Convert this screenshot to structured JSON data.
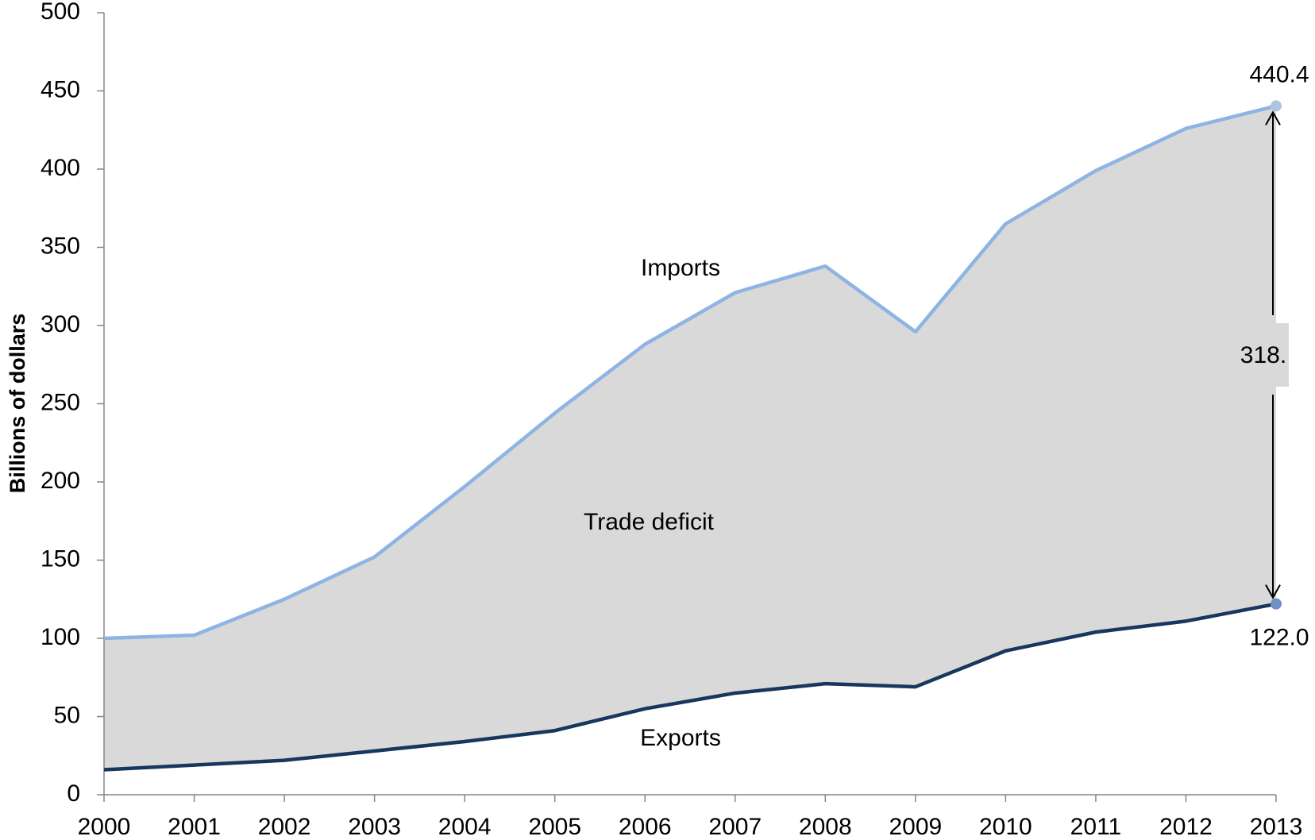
{
  "chart_data": {
    "type": "line",
    "y_label": "Billions of dollars",
    "x": [
      2000,
      2001,
      2002,
      2003,
      2004,
      2005,
      2006,
      2007,
      2008,
      2009,
      2010,
      2011,
      2012,
      2013
    ],
    "series": [
      {
        "name": "Imports",
        "color": "#8eb4e3",
        "values": [
          100,
          102,
          125,
          152,
          197,
          244,
          288,
          321,
          338,
          296,
          365,
          399,
          426,
          440.4
        ],
        "value_labels": [
          null,
          null,
          null,
          null,
          null,
          null,
          null,
          null,
          null,
          null,
          null,
          null,
          null,
          "440.4"
        ]
      },
      {
        "name": "Exports",
        "color": "#17375e",
        "values": [
          16,
          19,
          22,
          28,
          34,
          41,
          55,
          65,
          71,
          69,
          92,
          104,
          111,
          122
        ],
        "value_labels": [
          null,
          null,
          null,
          null,
          null,
          null,
          null,
          null,
          null,
          null,
          null,
          null,
          null,
          "122.0"
        ]
      }
    ],
    "annotations": [
      "Trade deficit",
      "318."
    ],
    "area_color": "#d9d9d9",
    "xlim": [
      2000,
      2013
    ],
    "xticks": [
      2000,
      2001,
      2002,
      2003,
      2004,
      2005,
      2006,
      2007,
      2008,
      2009,
      2010,
      2011,
      2012,
      2013
    ],
    "ylim": [
      0,
      500
    ],
    "yticks": [
      0,
      50,
      100,
      150,
      200,
      250,
      300,
      350,
      400,
      450,
      500
    ]
  }
}
